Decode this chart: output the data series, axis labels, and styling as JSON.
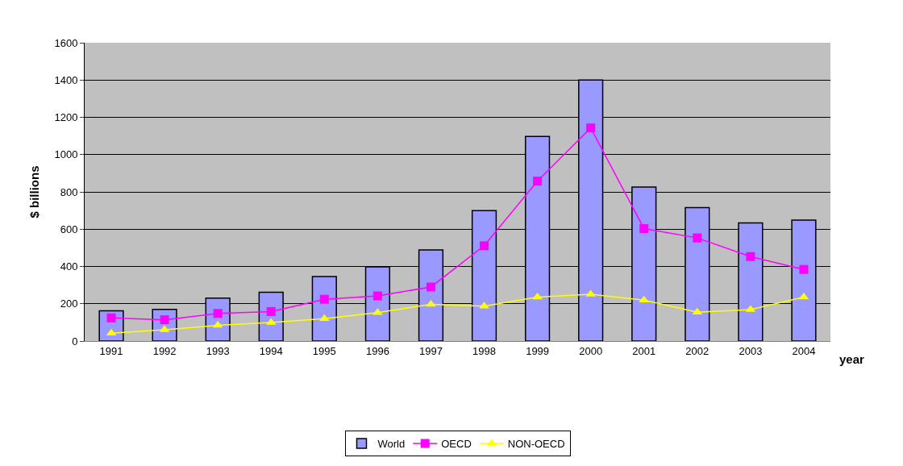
{
  "chart_data": {
    "type": "bar",
    "xlabel": "year",
    "ylabel": "$ billions",
    "categories": [
      "1991",
      "1992",
      "1993",
      "1994",
      "1995",
      "1996",
      "1997",
      "1998",
      "1999",
      "2000",
      "2001",
      "2002",
      "2003",
      "2004"
    ],
    "series": [
      {
        "name": "World",
        "color": "#9999ff",
        "values": [
          162,
          170,
          230,
          262,
          346,
          398,
          489,
          700,
          1097,
          1400,
          826,
          716,
          633,
          649
        ]
      },
      {
        "name": "OECD",
        "type": "line",
        "color": "#ff00ff",
        "marker": "square",
        "values": [
          124,
          114,
          148,
          158,
          224,
          242,
          290,
          511,
          858,
          1143,
          603,
          553,
          453,
          384
        ]
      },
      {
        "name": "NON-OECD",
        "type": "line",
        "color": "#ffff00",
        "marker": "triangle",
        "values": [
          42,
          61,
          84,
          100,
          120,
          152,
          197,
          187,
          236,
          251,
          219,
          155,
          169,
          236
        ]
      }
    ],
    "ylim": [
      0,
      1600
    ],
    "yticks": [
      0,
      200,
      400,
      600,
      800,
      1000,
      1200,
      1400,
      1600
    ],
    "grid": "y",
    "legend": "bottom"
  }
}
